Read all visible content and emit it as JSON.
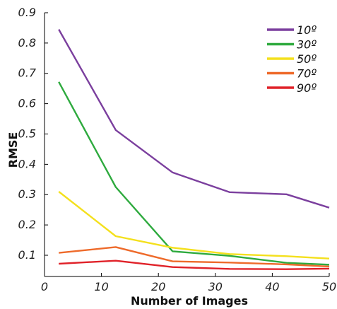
{
  "chart_data": {
    "type": "line",
    "title": "",
    "xlabel": "Number of Images",
    "ylabel": "RMSE",
    "xlim": [
      0,
      50
    ],
    "ylim": [
      0.03,
      0.9
    ],
    "x_ticks": [
      "0",
      "10",
      "20",
      "30",
      "40",
      "50"
    ],
    "y_ticks": [
      "0.1",
      "0.2",
      "0.3",
      "0.4",
      "0.5",
      "0.6",
      "0.7",
      "0.8",
      "0.9"
    ],
    "legend_position": "top-right",
    "grid": false,
    "x": [
      2.5,
      12.5,
      22.5,
      32.5,
      42.5,
      50
    ],
    "series": [
      {
        "name": "10º",
        "color": "#7B3F9E",
        "values": [
          0.845,
          0.513,
          0.373,
          0.308,
          0.301,
          0.257
        ]
      },
      {
        "name": "30º",
        "color": "#2EAA3E",
        "values": [
          0.672,
          0.325,
          0.113,
          0.098,
          0.075,
          0.069
        ]
      },
      {
        "name": "50º",
        "color": "#F4E01D",
        "values": [
          0.31,
          0.163,
          0.125,
          0.104,
          0.097,
          0.089
        ]
      },
      {
        "name": "70º",
        "color": "#EE6A2A",
        "values": [
          0.108,
          0.127,
          0.08,
          0.076,
          0.07,
          0.063
        ]
      },
      {
        "name": "90º",
        "color": "#E02229",
        "values": [
          0.072,
          0.082,
          0.061,
          0.055,
          0.054,
          0.056
        ]
      }
    ]
  }
}
